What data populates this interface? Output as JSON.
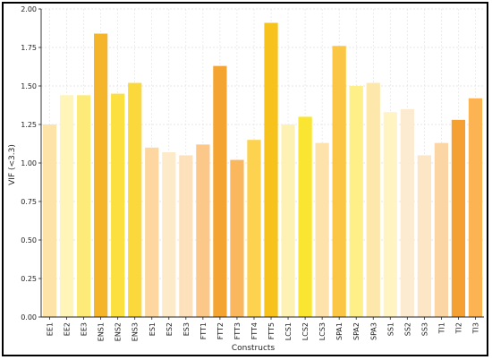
{
  "chart_data": {
    "type": "bar",
    "title": "",
    "xlabel": "Constructs",
    "ylabel": "VIF (<3.3)",
    "ylim": [
      0,
      2.0
    ],
    "yticks": [
      "0.00",
      "0.25",
      "0.50",
      "0.75",
      "1.00",
      "1.25",
      "1.50",
      "1.75",
      "2.00"
    ],
    "grid": true,
    "categories": [
      "EE1",
      "EE2",
      "EE3",
      "ENS1",
      "ENS2",
      "ENS3",
      "ES1",
      "ES2",
      "ES3",
      "FTT1",
      "FTT2",
      "FTT3",
      "FTT4",
      "FTT5",
      "LCS1",
      "LCS2",
      "LCS3",
      "SPA1",
      "SPA2",
      "SPA3",
      "SS1",
      "SS2",
      "SS3",
      "TI1",
      "TI2",
      "TI3"
    ],
    "values": [
      1.25,
      1.44,
      1.44,
      1.84,
      1.45,
      1.52,
      1.1,
      1.07,
      1.05,
      1.12,
      1.63,
      1.02,
      1.15,
      1.91,
      1.25,
      1.3,
      1.13,
      1.76,
      1.5,
      1.52,
      1.33,
      1.35,
      1.05,
      1.13,
      1.28,
      1.42
    ],
    "bar_colors": [
      "#fde3a7",
      "#fff5b8",
      "#fcea79",
      "#f5b52a",
      "#fce040",
      "#fbd83c",
      "#fdd6a0",
      "#fdeac8",
      "#fce1bc",
      "#fcc88a",
      "#f4a431",
      "#fab75d",
      "#fcd24e",
      "#f8c21d",
      "#fdf1b4",
      "#fbe533",
      "#fde2ab",
      "#fbc644",
      "#fef086",
      "#fde7ab",
      "#fff4c2",
      "#fdebd1",
      "#fde6c5",
      "#fcd5a4",
      "#f4a033",
      "#fcb351"
    ]
  }
}
